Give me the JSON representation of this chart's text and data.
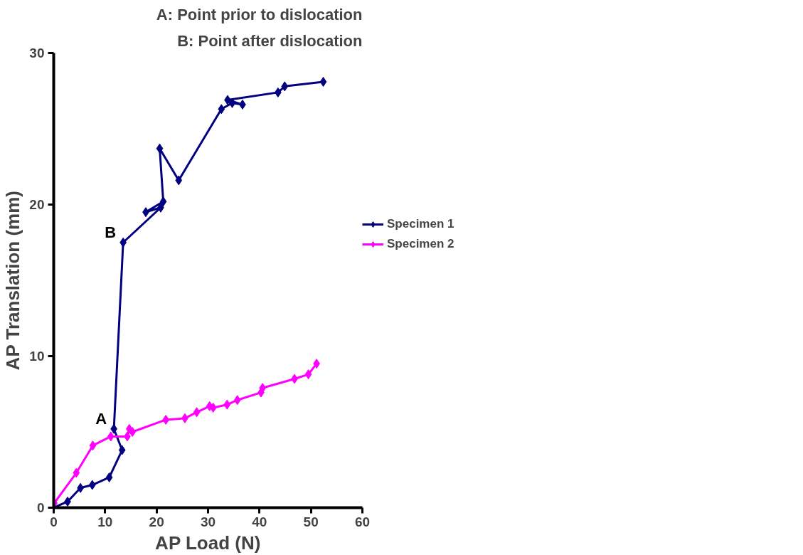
{
  "chart_data": {
    "type": "line",
    "xlabel": "AP Load (N)",
    "ylabel": "AP Translation (mm)",
    "xlim": [
      0,
      60
    ],
    "xticks": [
      0,
      10,
      20,
      30,
      40,
      50,
      60
    ],
    "ylim": [
      0,
      30
    ],
    "yticks": [
      0,
      10,
      20,
      30
    ],
    "grid": false,
    "legend": "right",
    "marker": "diamond",
    "line_style": "solid",
    "series": [
      {
        "name": "Specimen 1",
        "color": "#000080",
        "x": [
          0,
          2.7,
          5.2,
          7.5,
          10.8,
          13.3,
          11.7,
          13.5,
          20.8,
          17.9,
          21.3,
          20.6,
          24.3,
          32.6,
          34.7,
          36.7,
          33.8,
          43.6,
          44.9,
          52.4
        ],
        "values": [
          0,
          0.4,
          1.3,
          1.5,
          2.0,
          3.8,
          5.2,
          17.5,
          19.8,
          19.5,
          20.2,
          23.7,
          21.6,
          26.3,
          26.7,
          26.6,
          26.9,
          27.4,
          27.8,
          28.1
        ]
      },
      {
        "name": "Specimen 2",
        "color": "#ff00ff",
        "x": [
          0.1,
          4.4,
          7.6,
          11.1,
          14.3,
          14.7,
          15.3,
          21.8,
          25.5,
          27.8,
          30.3,
          31.0,
          33.7,
          35.7,
          40.3,
          40.6,
          46.8,
          49.5,
          51.1
        ],
        "values": [
          0.3,
          2.3,
          4.1,
          4.7,
          4.7,
          5.2,
          5.0,
          5.8,
          5.9,
          6.3,
          6.7,
          6.6,
          6.8,
          7.1,
          7.6,
          7.9,
          8.5,
          8.8,
          9.5
        ]
      }
    ],
    "annotations": [
      {
        "text": "A",
        "x": 11.7,
        "y": 5.2
      },
      {
        "text": "B",
        "x": 13.5,
        "y": 17.5
      },
      "A: Point prior to dislocation",
      "B: Point after dislocation"
    ]
  }
}
